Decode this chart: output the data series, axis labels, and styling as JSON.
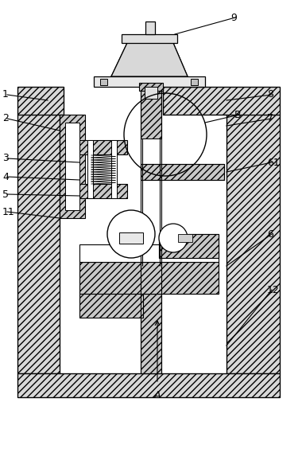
{
  "bg_color": "#ffffff",
  "fig_width": 3.8,
  "fig_height": 5.64,
  "label_fontsize": 9,
  "hatch_fc": "#d8d8d8",
  "hatch_pattern": "////",
  "white": "#ffffff",
  "black": "#000000"
}
